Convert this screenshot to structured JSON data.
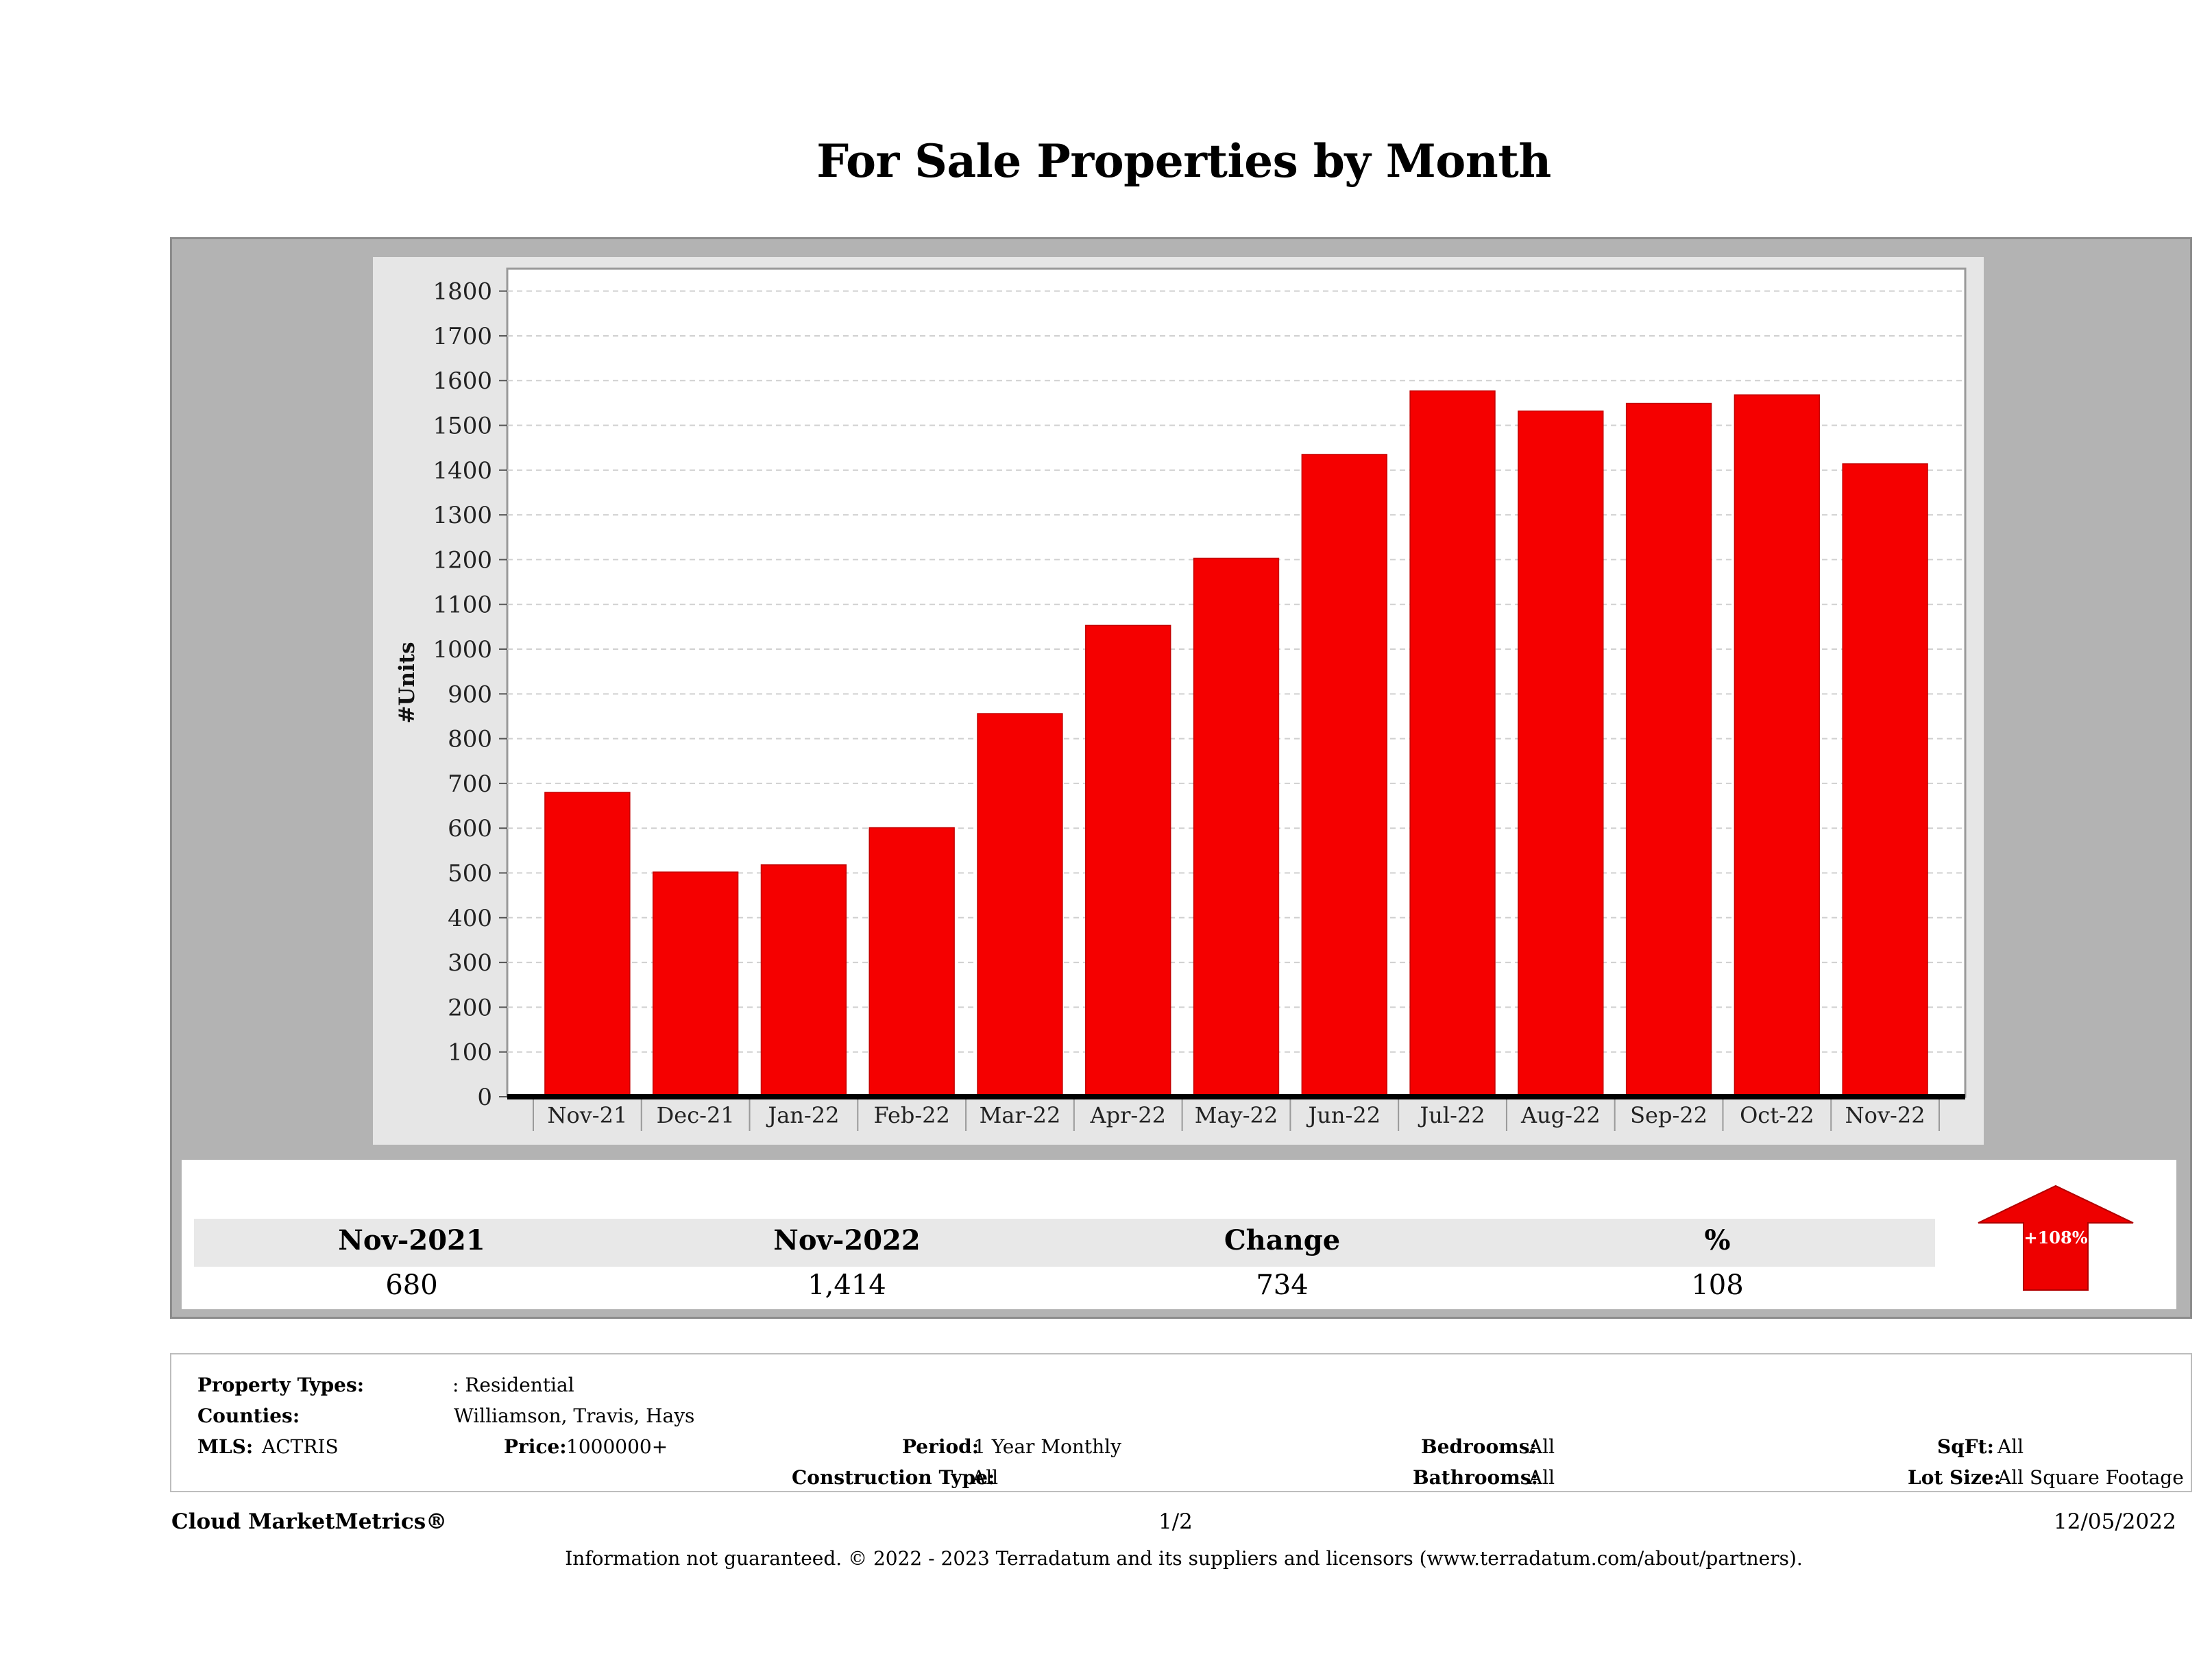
{
  "title": "For Sale Properties by Month",
  "chart_data": {
    "type": "bar",
    "title": "For Sale Properties by Month",
    "ylabel": "#Units",
    "xlabel": "",
    "categories": [
      "Nov-21",
      "Dec-21",
      "Jan-22",
      "Feb-22",
      "Mar-22",
      "Apr-22",
      "May-22",
      "Jun-22",
      "Jul-22",
      "Aug-22",
      "Sep-22",
      "Oct-22",
      "Nov-22"
    ],
    "values": [
      680,
      502,
      518,
      601,
      856,
      1053,
      1203,
      1435,
      1577,
      1532,
      1549,
      1568,
      1414
    ],
    "ylim": [
      0,
      1850
    ],
    "yticks": [
      0,
      100,
      200,
      300,
      400,
      500,
      600,
      700,
      800,
      900,
      1000,
      1100,
      1200,
      1300,
      1400,
      1500,
      1600,
      1700,
      1800
    ],
    "grid": true,
    "bar_color": "#f50000"
  },
  "stats": {
    "headers": [
      "Nov-2021",
      "Nov-2022",
      "Change",
      "%"
    ],
    "values": [
      "680",
      "1,414",
      "734",
      "108"
    ],
    "badge": "+108%",
    "badge_color": "#ee0000"
  },
  "meta": {
    "property_types_label": "Property Types:",
    "property_types_value": ": Residential",
    "counties_label": "Counties:",
    "counties_value": "Williamson, Travis, Hays",
    "mls_label": "MLS:",
    "mls_value": "ACTRIS",
    "price_label": "Price:",
    "price_value": "1000000+",
    "period_label": "Period:",
    "period_value": "1 Year Monthly",
    "construction_label": "Construction Type:",
    "construction_value": "All",
    "bedrooms_label": "Bedrooms:",
    "bedrooms_value": "All",
    "bathrooms_label": "Bathrooms:",
    "bathrooms_value": "All",
    "sqft_label": "SqFt:",
    "sqft_value": "All",
    "lotsize_label": "Lot Size:",
    "lotsize_value": "All Square Footage"
  },
  "footer": {
    "brand": "Cloud MarketMetrics®",
    "page": "1/2",
    "date": "12/05/2022",
    "disclaimer": "Information not guaranteed. © 2022 - 2023 Terradatum and its suppliers and licensors (www.terradatum.com/about/partners)."
  }
}
